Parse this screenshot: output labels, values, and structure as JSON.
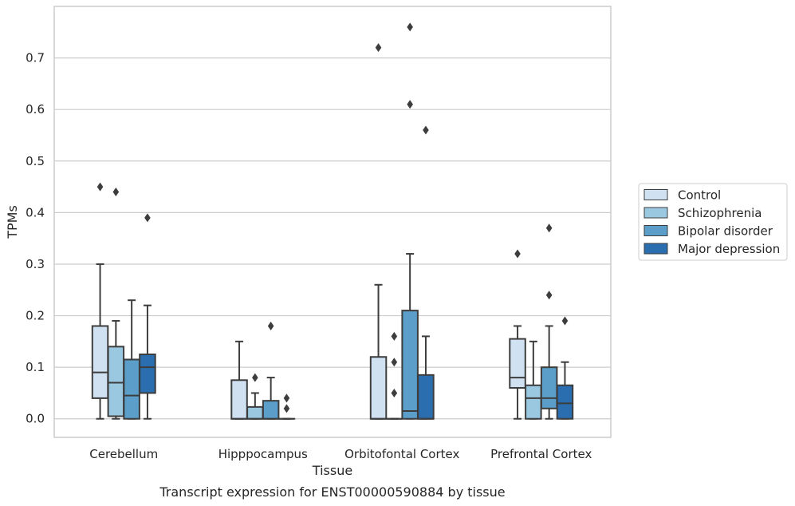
{
  "chart_data": {
    "type": "box",
    "xlabel": "Tissue",
    "ylabel": "TPMs",
    "caption": "Transcript expression for ENST00000590884 by tissue",
    "ylim": [
      -0.036,
      0.8
    ],
    "yticks": [
      0.0,
      0.1,
      0.2,
      0.3,
      0.4,
      0.5,
      0.6,
      0.7
    ],
    "ytick_labels": [
      "0.0",
      "0.1",
      "0.2",
      "0.3",
      "0.4",
      "0.5",
      "0.6",
      "0.7"
    ],
    "grid": "horizontal",
    "legend_position": "right",
    "categories": [
      "Cerebellum",
      "Hipppocampus",
      "Orbitofontal Cortex",
      "Prefrontal Cortex"
    ],
    "series": [
      {
        "name": "Control",
        "color": "#d0e1f2",
        "boxes": [
          {
            "whislo": 0.0,
            "q1": 0.04,
            "med": 0.09,
            "q3": 0.18,
            "whishi": 0.3,
            "fliers": [
              0.45
            ]
          },
          {
            "whislo": 0.0,
            "q1": 0.0,
            "med": 0.0,
            "q3": 0.075,
            "whishi": 0.15,
            "fliers": []
          },
          {
            "whislo": 0.0,
            "q1": 0.0,
            "med": 0.0,
            "q3": 0.12,
            "whishi": 0.26,
            "fliers": [
              0.72
            ]
          },
          {
            "whislo": 0.0,
            "q1": 0.06,
            "med": 0.08,
            "q3": 0.155,
            "whishi": 0.18,
            "fliers": [
              0.32
            ]
          }
        ]
      },
      {
        "name": "Schizophrenia",
        "color": "#9ac8e0",
        "boxes": [
          {
            "whislo": 0.0,
            "q1": 0.005,
            "med": 0.07,
            "q3": 0.14,
            "whishi": 0.19,
            "fliers": [
              0.44
            ]
          },
          {
            "whislo": 0.0,
            "q1": 0.0,
            "med": 0.0,
            "q3": 0.023,
            "whishi": 0.05,
            "fliers": [
              0.08
            ]
          },
          {
            "whislo": 0.0,
            "q1": 0.0,
            "med": 0.0,
            "q3": 0.0,
            "whishi": 0.0,
            "fliers": [
              0.05,
              0.11,
              0.16
            ]
          },
          {
            "whislo": 0.0,
            "q1": 0.0,
            "med": 0.04,
            "q3": 0.065,
            "whishi": 0.15,
            "fliers": []
          }
        ]
      },
      {
        "name": "Bipolar disorder",
        "color": "#5a9ec9",
        "boxes": [
          {
            "whislo": 0.0,
            "q1": 0.0,
            "med": 0.045,
            "q3": 0.115,
            "whishi": 0.23,
            "fliers": []
          },
          {
            "whislo": 0.0,
            "q1": 0.0,
            "med": 0.0,
            "q3": 0.035,
            "whishi": 0.08,
            "fliers": [
              0.18
            ]
          },
          {
            "whislo": 0.0,
            "q1": 0.0,
            "med": 0.015,
            "q3": 0.21,
            "whishi": 0.32,
            "fliers": [
              0.61,
              0.76
            ]
          },
          {
            "whislo": 0.0,
            "q1": 0.02,
            "med": 0.04,
            "q3": 0.1,
            "whishi": 0.18,
            "fliers": [
              0.24,
              0.37
            ]
          }
        ]
      },
      {
        "name": "Major depression",
        "color": "#2a6eb0",
        "boxes": [
          {
            "whislo": 0.0,
            "q1": 0.05,
            "med": 0.1,
            "q3": 0.125,
            "whishi": 0.22,
            "fliers": [
              0.39
            ]
          },
          {
            "whislo": 0.0,
            "q1": 0.0,
            "med": 0.0,
            "q3": 0.0,
            "whishi": 0.0,
            "fliers": [
              0.02,
              0.04
            ]
          },
          {
            "whislo": 0.0,
            "q1": 0.0,
            "med": 0.0,
            "q3": 0.085,
            "whishi": 0.16,
            "fliers": [
              0.56
            ]
          },
          {
            "whislo": 0.0,
            "q1": 0.0,
            "med": 0.03,
            "q3": 0.065,
            "whishi": 0.11,
            "fliers": [
              0.19
            ]
          }
        ]
      }
    ]
  }
}
